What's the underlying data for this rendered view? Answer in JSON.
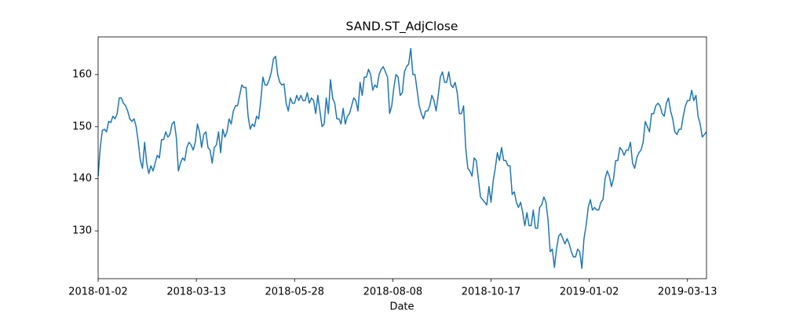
{
  "chart_data": {
    "type": "line",
    "title": "SAND.ST_AdjClose",
    "x_label": "Date",
    "color": "#1f77b4",
    "values": [
      140.5,
      146,
      149.3,
      149.5,
      149,
      151,
      150.8,
      152,
      151.5,
      152.5,
      155.5,
      155.5,
      154.5,
      154,
      153,
      151.5,
      151,
      151.5,
      150,
      147,
      143.5,
      142,
      147,
      143,
      141,
      142.5,
      141.5,
      143,
      144.5,
      144,
      147.5,
      147.5,
      149,
      148,
      148.5,
      150.5,
      151,
      148,
      141.5,
      143,
      144,
      143.5,
      146,
      147,
      146.5,
      145.5,
      147,
      150.5,
      149,
      146,
      148.5,
      149,
      146,
      145.5,
      143,
      146,
      146.5,
      149,
      145,
      149.5,
      148,
      149,
      151.5,
      150.5,
      153,
      154,
      154,
      156,
      158,
      157.5,
      157.5,
      152,
      149.5,
      150.5,
      150,
      152,
      151.5,
      155,
      159.5,
      158,
      158,
      159,
      160.5,
      163,
      163.5,
      160,
      158.5,
      158,
      158.2,
      154.5,
      153,
      155.5,
      154.5,
      154.5,
      156,
      155,
      156,
      155,
      155,
      156.5,
      154.5,
      155.5,
      155,
      152.5,
      156,
      153,
      150,
      150.5,
      155.5,
      152.5,
      159,
      155.5,
      154.5,
      151.5,
      151.5,
      150.5,
      153.5,
      150.5,
      152,
      152.5,
      154,
      155.5,
      155,
      153,
      158.5,
      156,
      159.5,
      159.5,
      161,
      160,
      157,
      158,
      157.5,
      160,
      161,
      161.5,
      160.5,
      159.5,
      152.5,
      154,
      157.5,
      160,
      159.5,
      156,
      156.5,
      160.5,
      161.5,
      162,
      165,
      160,
      160,
      157,
      154,
      152.5,
      151.5,
      153,
      153,
      154,
      156,
      155,
      153,
      156,
      159.5,
      160.5,
      158.5,
      158.5,
      160.5,
      158,
      157.5,
      158.5,
      156.5,
      152.5,
      152.5,
      154,
      146,
      142,
      141.5,
      140.5,
      144,
      143.5,
      140,
      136.5,
      136,
      135.5,
      135,
      138.5,
      135.5,
      139.5,
      142,
      145,
      143.5,
      146,
      143.5,
      143.5,
      142.5,
      142.5,
      137,
      137.5,
      135.5,
      134.5,
      135.5,
      133.5,
      131,
      133.5,
      131,
      131,
      134,
      130.5,
      130.5,
      134.5,
      135,
      136.5,
      135.5,
      132,
      126,
      126.5,
      123,
      126.5,
      129,
      129.5,
      128.5,
      127.5,
      128.5,
      127.5,
      126,
      125,
      125,
      126.5,
      126,
      122.8,
      128.5,
      131,
      134.5,
      136,
      134,
      134.5,
      134,
      134,
      135.5,
      136,
      140,
      141.5,
      140.5,
      138.5,
      140,
      143.5,
      143.5,
      146,
      145.5,
      144.5,
      145.5,
      145.5,
      147,
      143,
      142,
      144,
      145,
      145.5,
      147,
      151,
      150,
      149,
      152.5,
      152.5,
      154,
      154.5,
      154,
      152.5,
      152,
      154.5,
      155.5,
      153,
      151.5,
      149,
      148.5,
      149.5,
      149.5,
      152,
      154,
      155,
      155,
      157,
      155,
      156,
      152,
      150.5,
      148,
      148.5,
      149
    ],
    "xlim": [
      0,
      288
    ],
    "xticks": [
      {
        "value": 0,
        "label": "2018-01-02"
      },
      {
        "value": 46.5,
        "label": "2018-03-13"
      },
      {
        "value": 93,
        "label": "2018-05-28"
      },
      {
        "value": 139.5,
        "label": "2018-08-08"
      },
      {
        "value": 186,
        "label": "2018-10-17"
      },
      {
        "value": 232.5,
        "label": "2019-01-02"
      },
      {
        "value": 279,
        "label": "2019-03-13"
      }
    ],
    "ylim": [
      120.83,
      167.22
    ],
    "yticks": [
      130,
      140,
      150,
      160
    ]
  }
}
